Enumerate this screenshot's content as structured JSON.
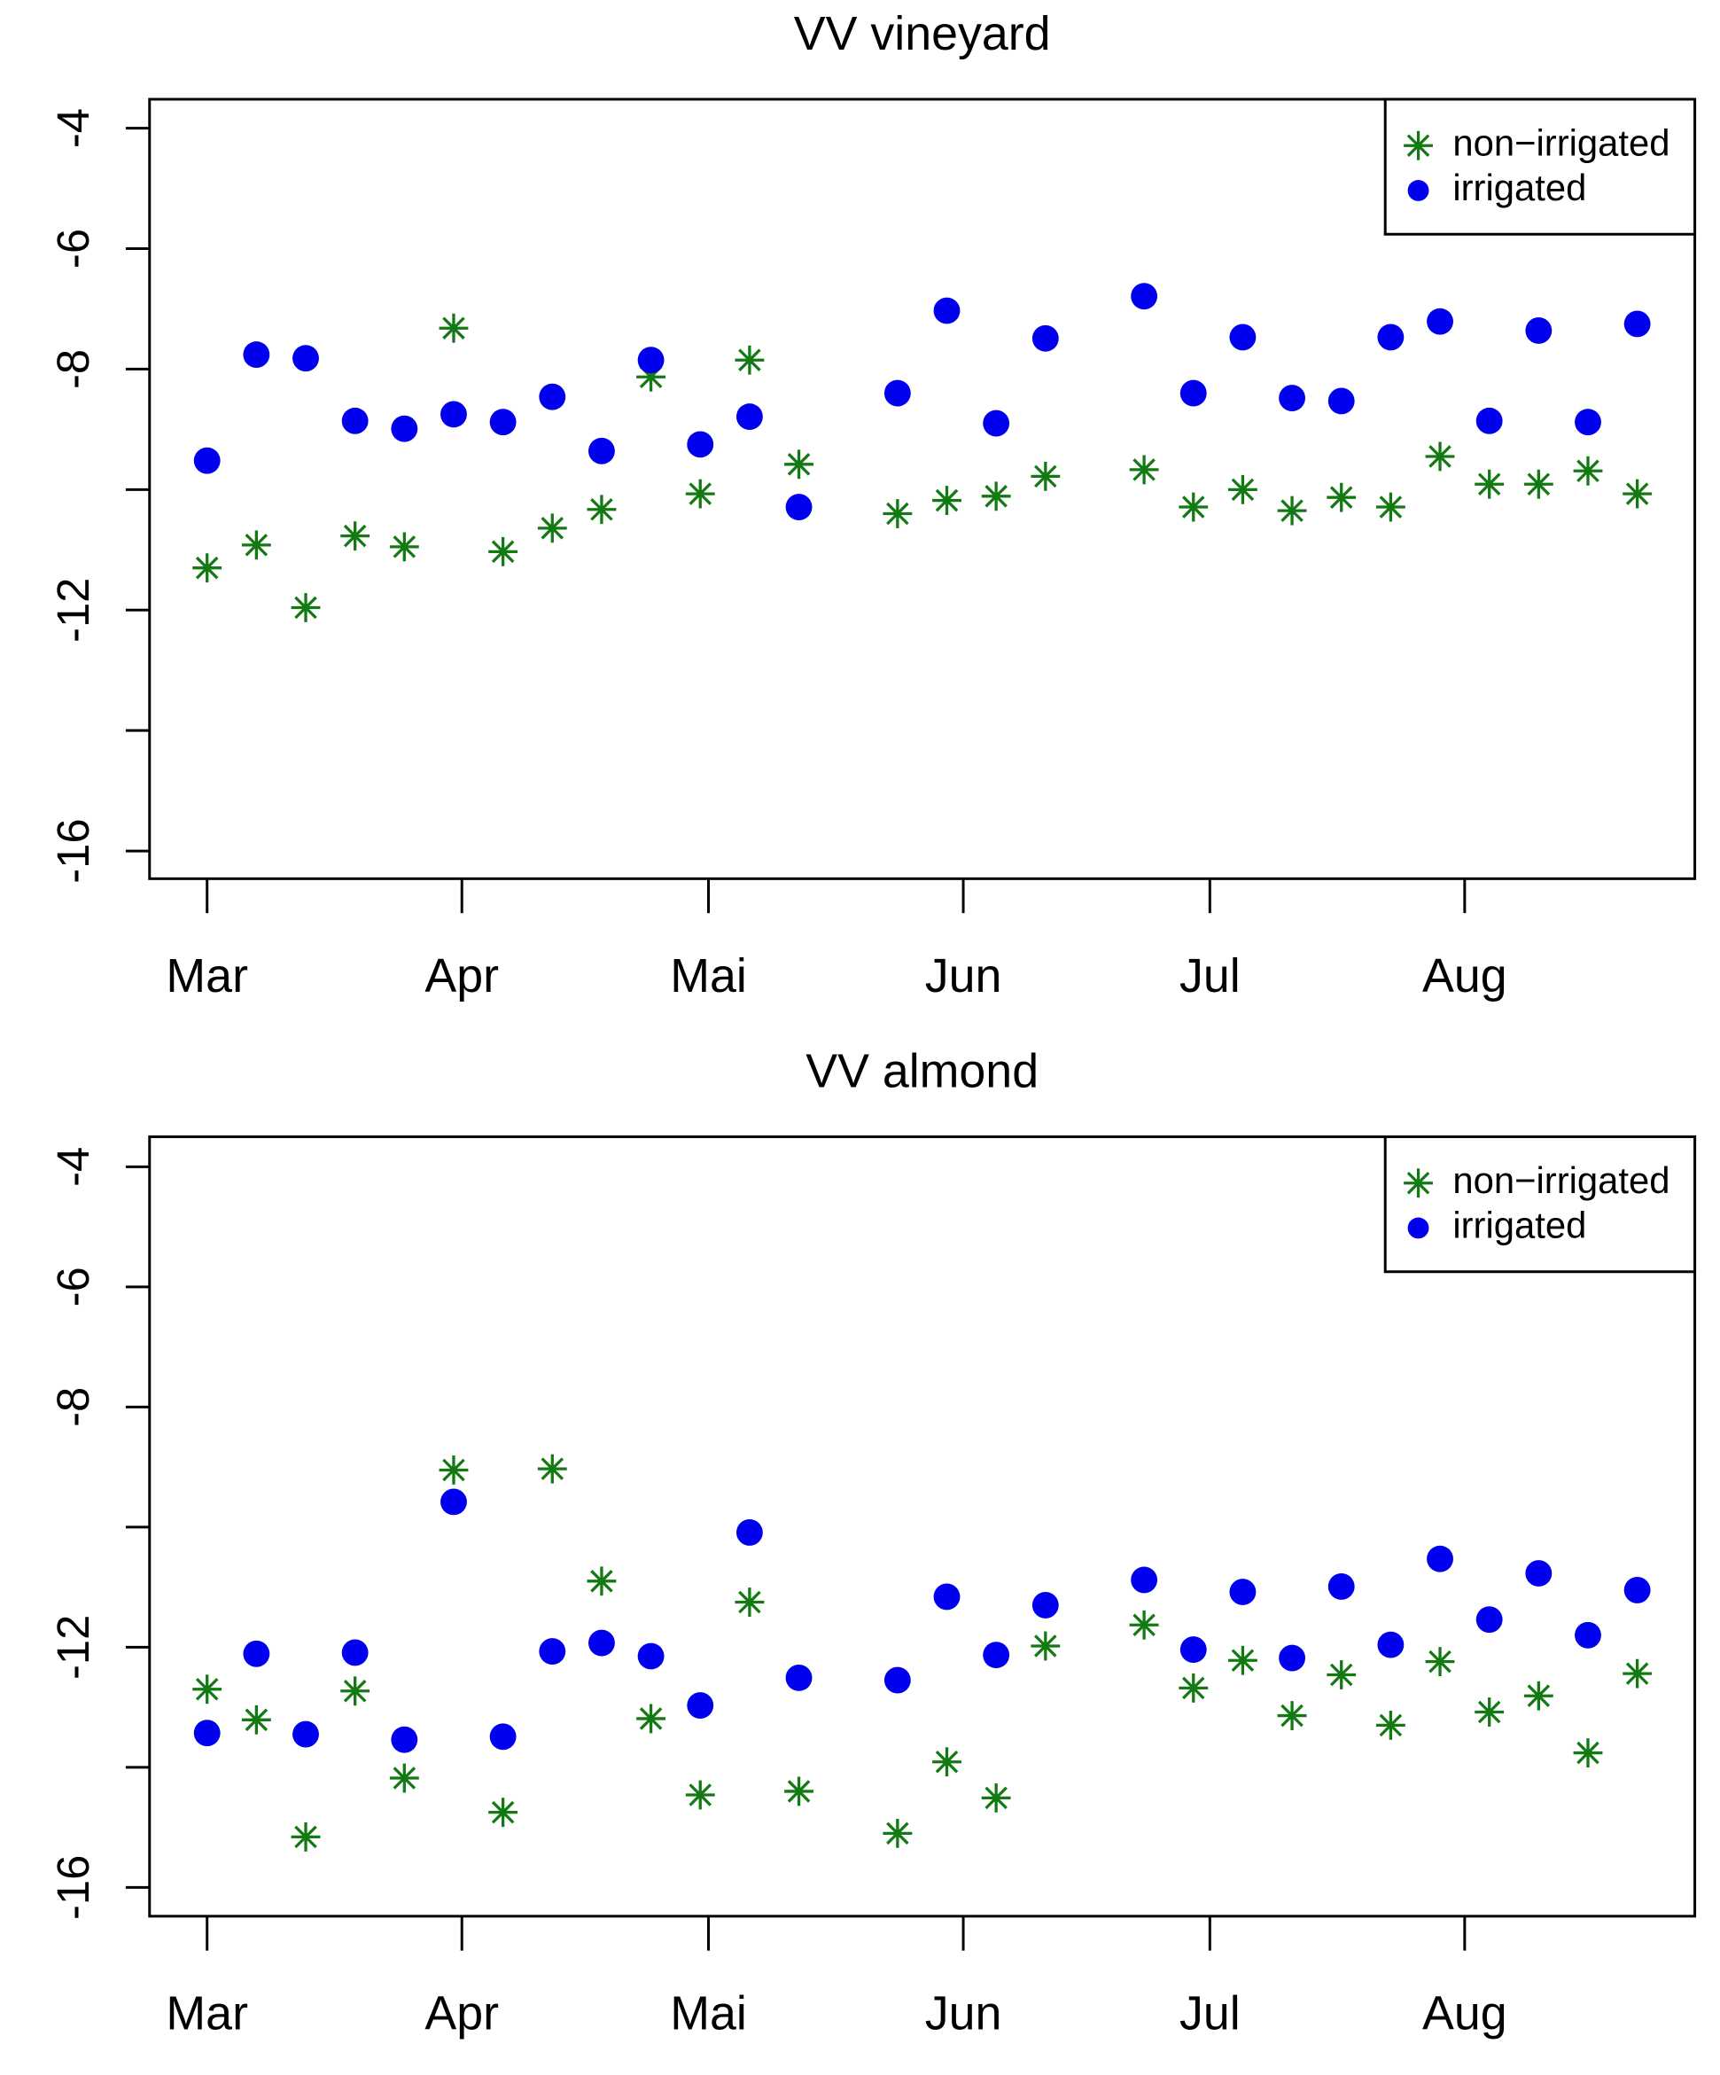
{
  "chart_data": [
    {
      "type": "scatter",
      "title": "VV vineyard",
      "x": [
        0,
        6,
        12,
        18,
        24,
        30,
        36,
        42,
        48,
        54,
        60,
        66,
        72,
        84,
        90,
        96,
        102,
        114,
        120,
        126,
        132,
        138,
        144,
        150,
        156,
        162,
        168,
        174
      ],
      "xlim": [
        -7,
        181
      ],
      "xticks": [
        {
          "value": 0,
          "label": "Mar"
        },
        {
          "value": 31,
          "label": "Apr"
        },
        {
          "value": 61,
          "label": "Mai"
        },
        {
          "value": 92,
          "label": "Jun"
        },
        {
          "value": 122,
          "label": "Jul"
        },
        {
          "value": 153,
          "label": "Aug"
        }
      ],
      "ylim": [
        -16.46,
        -3.52
      ],
      "yticks": [
        -4,
        -6,
        -8,
        {
          "value": -10,
          "label": null
        },
        -12,
        {
          "value": -14,
          "label": null
        },
        -16
      ],
      "legend": "topright",
      "series": [
        {
          "name": "non−irrigated",
          "color": "#137a13",
          "marker": "asterisk",
          "values": [
            -11.3,
            -10.92,
            -11.96,
            -10.77,
            -10.95,
            -7.32,
            -11.03,
            -10.64,
            -10.33,
            -8.13,
            -10.07,
            -7.85,
            -9.58,
            -10.4,
            -10.18,
            -10.11,
            -9.78,
            -9.67,
            -10.29,
            -10.0,
            -10.35,
            -10.13,
            -10.29,
            -9.45,
            -9.91,
            -9.91,
            -9.69,
            -10.07
          ]
        },
        {
          "name": "irrigated",
          "color": "#0000ee",
          "marker": "circle",
          "values": [
            -9.52,
            -7.76,
            -7.82,
            -8.86,
            -8.99,
            -8.75,
            -8.88,
            -8.46,
            -9.36,
            -7.85,
            -9.25,
            -8.79,
            -10.29,
            -8.4,
            -7.03,
            -8.9,
            -7.49,
            -6.79,
            -8.4,
            -7.47,
            -8.48,
            -8.53,
            -7.47,
            -7.21,
            -8.86,
            -7.36,
            -8.88,
            -7.25
          ]
        }
      ]
    },
    {
      "type": "scatter",
      "title": "VV almond",
      "x": [
        0,
        6,
        12,
        18,
        24,
        30,
        36,
        42,
        48,
        54,
        60,
        66,
        72,
        84,
        90,
        96,
        102,
        114,
        120,
        126,
        132,
        138,
        144,
        150,
        156,
        162,
        168,
        174
      ],
      "xlim": [
        -7,
        181
      ],
      "xticks": [
        {
          "value": 0,
          "label": "Mar"
        },
        {
          "value": 31,
          "label": "Apr"
        },
        {
          "value": 61,
          "label": "Mai"
        },
        {
          "value": 92,
          "label": "Jun"
        },
        {
          "value": 122,
          "label": "Jul"
        },
        {
          "value": 153,
          "label": "Aug"
        }
      ],
      "ylim": [
        -16.48,
        -3.5
      ],
      "yticks": [
        -4,
        -6,
        -8,
        {
          "value": -10,
          "label": null
        },
        -12,
        {
          "value": -14,
          "label": null
        },
        -16
      ],
      "legend": "topright",
      "series": [
        {
          "name": "non−irrigated",
          "color": "#137a13",
          "marker": "asterisk",
          "values": [
            -12.7,
            -13.21,
            -15.16,
            -12.73,
            -14.18,
            -9.05,
            -14.75,
            -9.03,
            -10.9,
            -13.19,
            -14.46,
            -11.25,
            -14.4,
            -15.1,
            -13.91,
            -14.51,
            -11.98,
            -11.63,
            -12.68,
            -12.22,
            -13.14,
            -12.46,
            -13.3,
            -12.24,
            -13.08,
            -12.81,
            -13.76,
            -12.44
          ]
        },
        {
          "name": "irrigated",
          "color": "#0000ee",
          "marker": "circle",
          "values": [
            -13.43,
            -12.11,
            -13.45,
            -12.09,
            -13.54,
            -9.58,
            -13.49,
            -12.07,
            -11.93,
            -12.15,
            -12.97,
            -10.09,
            -12.51,
            -12.55,
            -11.16,
            -12.13,
            -11.3,
            -10.88,
            -12.04,
            -11.08,
            -12.18,
            -10.99,
            -11.96,
            -10.53,
            -11.54,
            -10.77,
            -11.8,
            -11.05
          ]
        }
      ]
    }
  ]
}
